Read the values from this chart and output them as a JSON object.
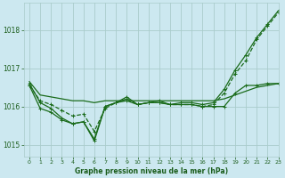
{
  "title": "Graphe pression niveau de la mer (hPa)",
  "background_color": "#cce8f0",
  "grid_color": "#aacccc",
  "line_color": "#1a6b1a",
  "text_color": "#1a5c1a",
  "xlim": [
    -0.5,
    23
  ],
  "ylim": [
    1014.7,
    1018.7
  ],
  "yticks": [
    1015,
    1016,
    1017,
    1018
  ],
  "xticks": [
    0,
    1,
    2,
    3,
    4,
    5,
    6,
    7,
    8,
    9,
    10,
    11,
    12,
    13,
    14,
    15,
    16,
    17,
    18,
    19,
    20,
    21,
    22,
    23
  ],
  "series": [
    {
      "x": [
        0,
        1,
        2,
        3,
        4,
        5,
        6,
        7,
        8,
        9,
        10,
        11,
        12,
        13,
        14,
        15,
        16,
        17,
        18,
        19,
        20,
        21,
        22,
        23
      ],
      "y": [
        1016.65,
        1016.3,
        1016.25,
        1016.2,
        1016.15,
        1016.15,
        1016.1,
        1016.15,
        1016.15,
        1016.15,
        1016.15,
        1016.15,
        1016.15,
        1016.15,
        1016.15,
        1016.15,
        1016.15,
        1016.15,
        1016.2,
        1016.3,
        1016.4,
        1016.5,
        1016.55,
        1016.6
      ],
      "marker": null,
      "linestyle": "-",
      "linewidth": 0.9
    },
    {
      "x": [
        0,
        1,
        2,
        3,
        4,
        5,
        6,
        7,
        8,
        9,
        10,
        11,
        12,
        13,
        14,
        15,
        16,
        17,
        18,
        19,
        20,
        21,
        22,
        23
      ],
      "y": [
        1016.55,
        1015.95,
        1015.85,
        1015.65,
        1015.55,
        1015.6,
        1015.1,
        1016.0,
        1016.1,
        1016.15,
        1016.05,
        1016.1,
        1016.1,
        1016.05,
        1016.05,
        1016.05,
        1016.0,
        1016.0,
        1016.0,
        1016.35,
        1016.55,
        1016.55,
        1016.6,
        1016.6
      ],
      "marker": "+",
      "linestyle": "-",
      "linewidth": 0.9
    },
    {
      "x": [
        0,
        1,
        2,
        3,
        4,
        5,
        6,
        7,
        8,
        9,
        10,
        11,
        12,
        13,
        14,
        15,
        16,
        17,
        18,
        19,
        20,
        21,
        22,
        23
      ],
      "y": [
        1016.55,
        1016.15,
        1016.05,
        1015.9,
        1015.75,
        1015.8,
        1015.35,
        1015.95,
        1016.1,
        1016.2,
        1016.05,
        1016.1,
        1016.1,
        1016.05,
        1016.05,
        1016.05,
        1016.0,
        1016.05,
        1016.35,
        1016.85,
        1017.2,
        1017.75,
        1018.1,
        1018.45
      ],
      "marker": "+",
      "linestyle": "--",
      "linewidth": 0.9
    },
    {
      "x": [
        0,
        1,
        2,
        3,
        4,
        5,
        6,
        7,
        8,
        9,
        10,
        11,
        12,
        13,
        14,
        15,
        16,
        17,
        18,
        19,
        20,
        21,
        22,
        23
      ],
      "y": [
        1016.6,
        1016.1,
        1015.95,
        1015.7,
        1015.55,
        1015.6,
        1015.15,
        1016.0,
        1016.1,
        1016.25,
        1016.05,
        1016.1,
        1016.15,
        1016.05,
        1016.1,
        1016.1,
        1016.05,
        1016.1,
        1016.45,
        1016.95,
        1017.35,
        1017.8,
        1018.15,
        1018.5
      ],
      "marker": "+",
      "linestyle": "-",
      "linewidth": 0.9
    }
  ]
}
